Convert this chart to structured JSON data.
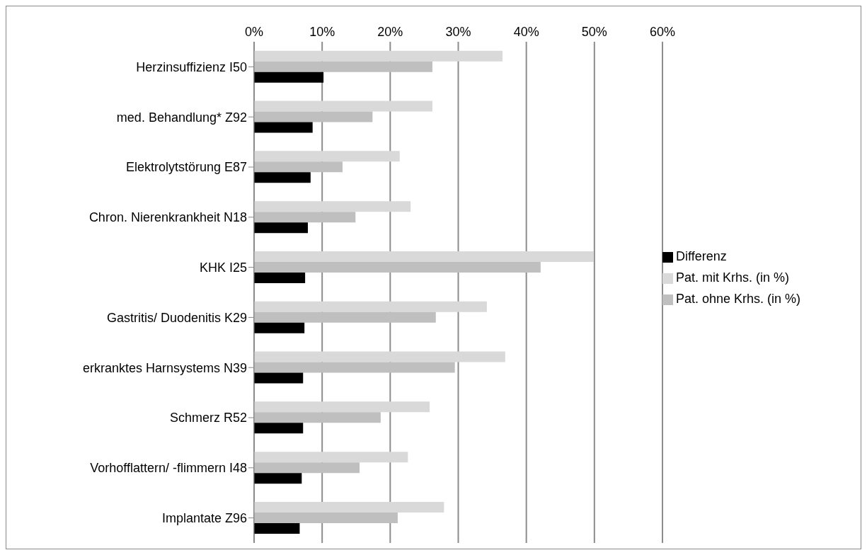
{
  "chart_data": {
    "type": "bar",
    "orientation": "horizontal",
    "categories": [
      "Herzinsuffizienz I50",
      "med. Behandlung* Z92",
      "Elektrolytstörung E87",
      "Chron. Nierenkrankheit N18",
      "KHK  I25",
      "Gastritis/ Duodenitis K29",
      "erkranktes Harnsystems N39",
      "Schmerz R52",
      "Vorhofflattern/ -flimmern I48",
      "Implantate Z96"
    ],
    "series": [
      {
        "name": "Pat. mit Krhs. (in %)",
        "color": "#d9d9d9",
        "values": [
          36.5,
          26.2,
          21.4,
          23.0,
          49.9,
          34.2,
          36.9,
          25.8,
          22.6,
          27.9
        ]
      },
      {
        "name": "Pat. ohne Krhs. (in %)",
        "color": "#bfbfbf",
        "values": [
          26.2,
          17.4,
          13.0,
          14.9,
          42.1,
          26.7,
          29.5,
          18.6,
          15.5,
          21.1
        ]
      },
      {
        "name": "Differenz",
        "color": "#000000",
        "values": [
          10.2,
          8.6,
          8.3,
          7.9,
          7.5,
          7.4,
          7.2,
          7.2,
          7.0,
          6.7
        ]
      }
    ],
    "xlim": [
      0,
      60
    ],
    "xticks": [
      {
        "value": 0,
        "label": "0%"
      },
      {
        "value": 10,
        "label": "10%"
      },
      {
        "value": 20,
        "label": "20%"
      },
      {
        "value": 30,
        "label": "30%"
      },
      {
        "value": 40,
        "label": "40%"
      },
      {
        "value": 50,
        "label": "50%"
      },
      {
        "value": 60,
        "label": "60%"
      }
    ],
    "grid": "x",
    "legend": "right"
  }
}
